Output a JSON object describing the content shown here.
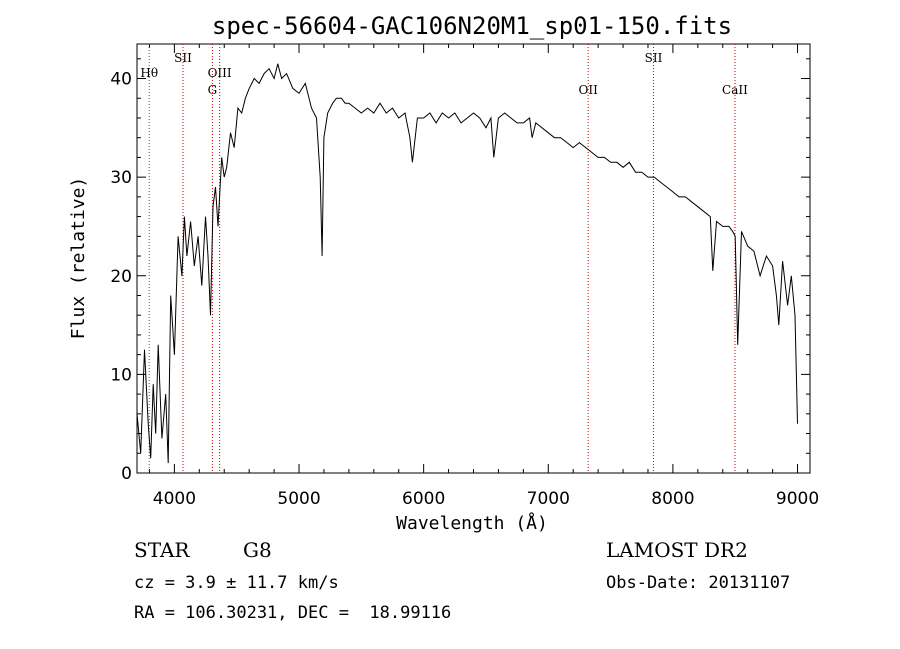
{
  "chart_data": {
    "type": "line",
    "title": "spec-56604-GAC106N20M1_sp01-150.fits",
    "xlabel": "Wavelength (Å)",
    "ylabel": "Flux (relative)",
    "xlim": [
      3700,
      9100
    ],
    "ylim": [
      0,
      43.5
    ],
    "xticks": [
      4000,
      5000,
      6000,
      7000,
      8000,
      9000
    ],
    "yticks": [
      0,
      10,
      20,
      30,
      40
    ],
    "x_tick_labels": [
      "4000",
      "5000",
      "6000",
      "7000",
      "8000",
      "9000"
    ],
    "y_tick_labels": [
      "0",
      "10",
      "20",
      "30",
      "40"
    ],
    "grid": false,
    "line_color": "#000000",
    "line_marker_color": "#cc0000",
    "series": [
      {
        "x": [
          3700,
          3730,
          3760,
          3790,
          3810,
          3830,
          3850,
          3870,
          3900,
          3930,
          3950,
          3970,
          4000,
          4030,
          4060,
          4080,
          4100,
          4130,
          4160,
          4190,
          4220,
          4250,
          4270,
          4290,
          4310,
          4330,
          4350,
          4380,
          4400,
          4420,
          4450,
          4480,
          4510,
          4540,
          4570,
          4600,
          4640,
          4680,
          4720,
          4760,
          4800,
          4830,
          4860,
          4900,
          4950,
          5000,
          5050,
          5100,
          5140,
          5170,
          5185,
          5200,
          5230,
          5270,
          5300,
          5340,
          5370,
          5400,
          5450,
          5500,
          5550,
          5600,
          5650,
          5700,
          5750,
          5800,
          5850,
          5890,
          5910,
          5950,
          6000,
          6050,
          6100,
          6150,
          6200,
          6250,
          6300,
          6350,
          6400,
          6450,
          6500,
          6540,
          6563,
          6600,
          6650,
          6700,
          6750,
          6800,
          6850,
          6870,
          6900,
          6950,
          7000,
          7050,
          7100,
          7150,
          7200,
          7250,
          7300,
          7350,
          7400,
          7450,
          7500,
          7550,
          7600,
          7650,
          7700,
          7750,
          7800,
          7850,
          7900,
          7950,
          8000,
          8050,
          8100,
          8150,
          8200,
          8250,
          8300,
          8320,
          8350,
          8400,
          8450,
          8480,
          8500,
          8520,
          8550,
          8600,
          8650,
          8700,
          8750,
          8800,
          8830,
          8850,
          8880,
          8920,
          8950,
          8980,
          9000
        ],
        "y": [
          6.0,
          2.0,
          12.5,
          5.0,
          1.5,
          9.0,
          4.0,
          13.0,
          3.5,
          8.0,
          1.0,
          18.0,
          12.0,
          24.0,
          20.0,
          26.0,
          22.0,
          25.5,
          21.0,
          24.0,
          19.0,
          26.0,
          22.0,
          16.0,
          27.0,
          29.0,
          25.0,
          32.0,
          30.0,
          31.0,
          34.5,
          33.0,
          37.0,
          36.5,
          38.0,
          39.0,
          40.0,
          39.5,
          40.5,
          41.0,
          40.0,
          41.5,
          40.0,
          40.5,
          39.0,
          38.5,
          39.5,
          37.0,
          36.0,
          30.0,
          22.0,
          34.0,
          36.5,
          37.5,
          38.0,
          38.0,
          37.5,
          37.5,
          37.0,
          36.5,
          37.0,
          36.5,
          37.5,
          36.5,
          37.0,
          36.0,
          36.5,
          34.0,
          31.5,
          36.0,
          36.0,
          36.5,
          35.5,
          36.5,
          36.0,
          36.5,
          35.5,
          36.0,
          36.5,
          36.0,
          35.0,
          36.0,
          32.0,
          36.0,
          36.5,
          36.0,
          35.5,
          35.5,
          36.0,
          34.0,
          35.5,
          35.0,
          34.5,
          34.0,
          34.0,
          33.5,
          33.0,
          33.5,
          33.0,
          32.5,
          32.0,
          32.0,
          31.5,
          31.5,
          31.0,
          31.5,
          30.5,
          30.5,
          30.0,
          30.0,
          29.5,
          29.0,
          28.5,
          28.0,
          28.0,
          27.5,
          27.0,
          26.5,
          26.0,
          20.5,
          25.5,
          25.0,
          25.0,
          24.5,
          24.0,
          13.0,
          24.5,
          23.0,
          22.5,
          20.0,
          22.0,
          21.0,
          18.0,
          15.0,
          21.5,
          17.0,
          20.0,
          16.0,
          5.0
        ]
      }
    ],
    "spectral_lines": [
      {
        "label": "Hθ",
        "x": 3798,
        "color": "#555555"
      },
      {
        "label": "SII",
        "x": 4069,
        "color": "#cc0000"
      },
      {
        "label": "OIII",
        "x": 4363,
        "color": "#cc0000"
      },
      {
        "label": "G",
        "x": 4305,
        "color": "#cc0000"
      },
      {
        "label": "OII",
        "x": 7320,
        "color": "#cc0000"
      },
      {
        "label": "SII",
        "x": 7844,
        "color": "#cc0000"
      },
      {
        "label": "CaII",
        "x": 8498,
        "color": "#cc0000"
      }
    ]
  },
  "footer": {
    "object_class": "STAR",
    "subclass": "G8",
    "redshift": "cz = 3.9 ± 11.7 km/s",
    "coords": "RA = 106.30231, DEC =  18.99116",
    "survey": "LAMOST DR2",
    "obs_date": "Obs-Date: 20131107"
  }
}
